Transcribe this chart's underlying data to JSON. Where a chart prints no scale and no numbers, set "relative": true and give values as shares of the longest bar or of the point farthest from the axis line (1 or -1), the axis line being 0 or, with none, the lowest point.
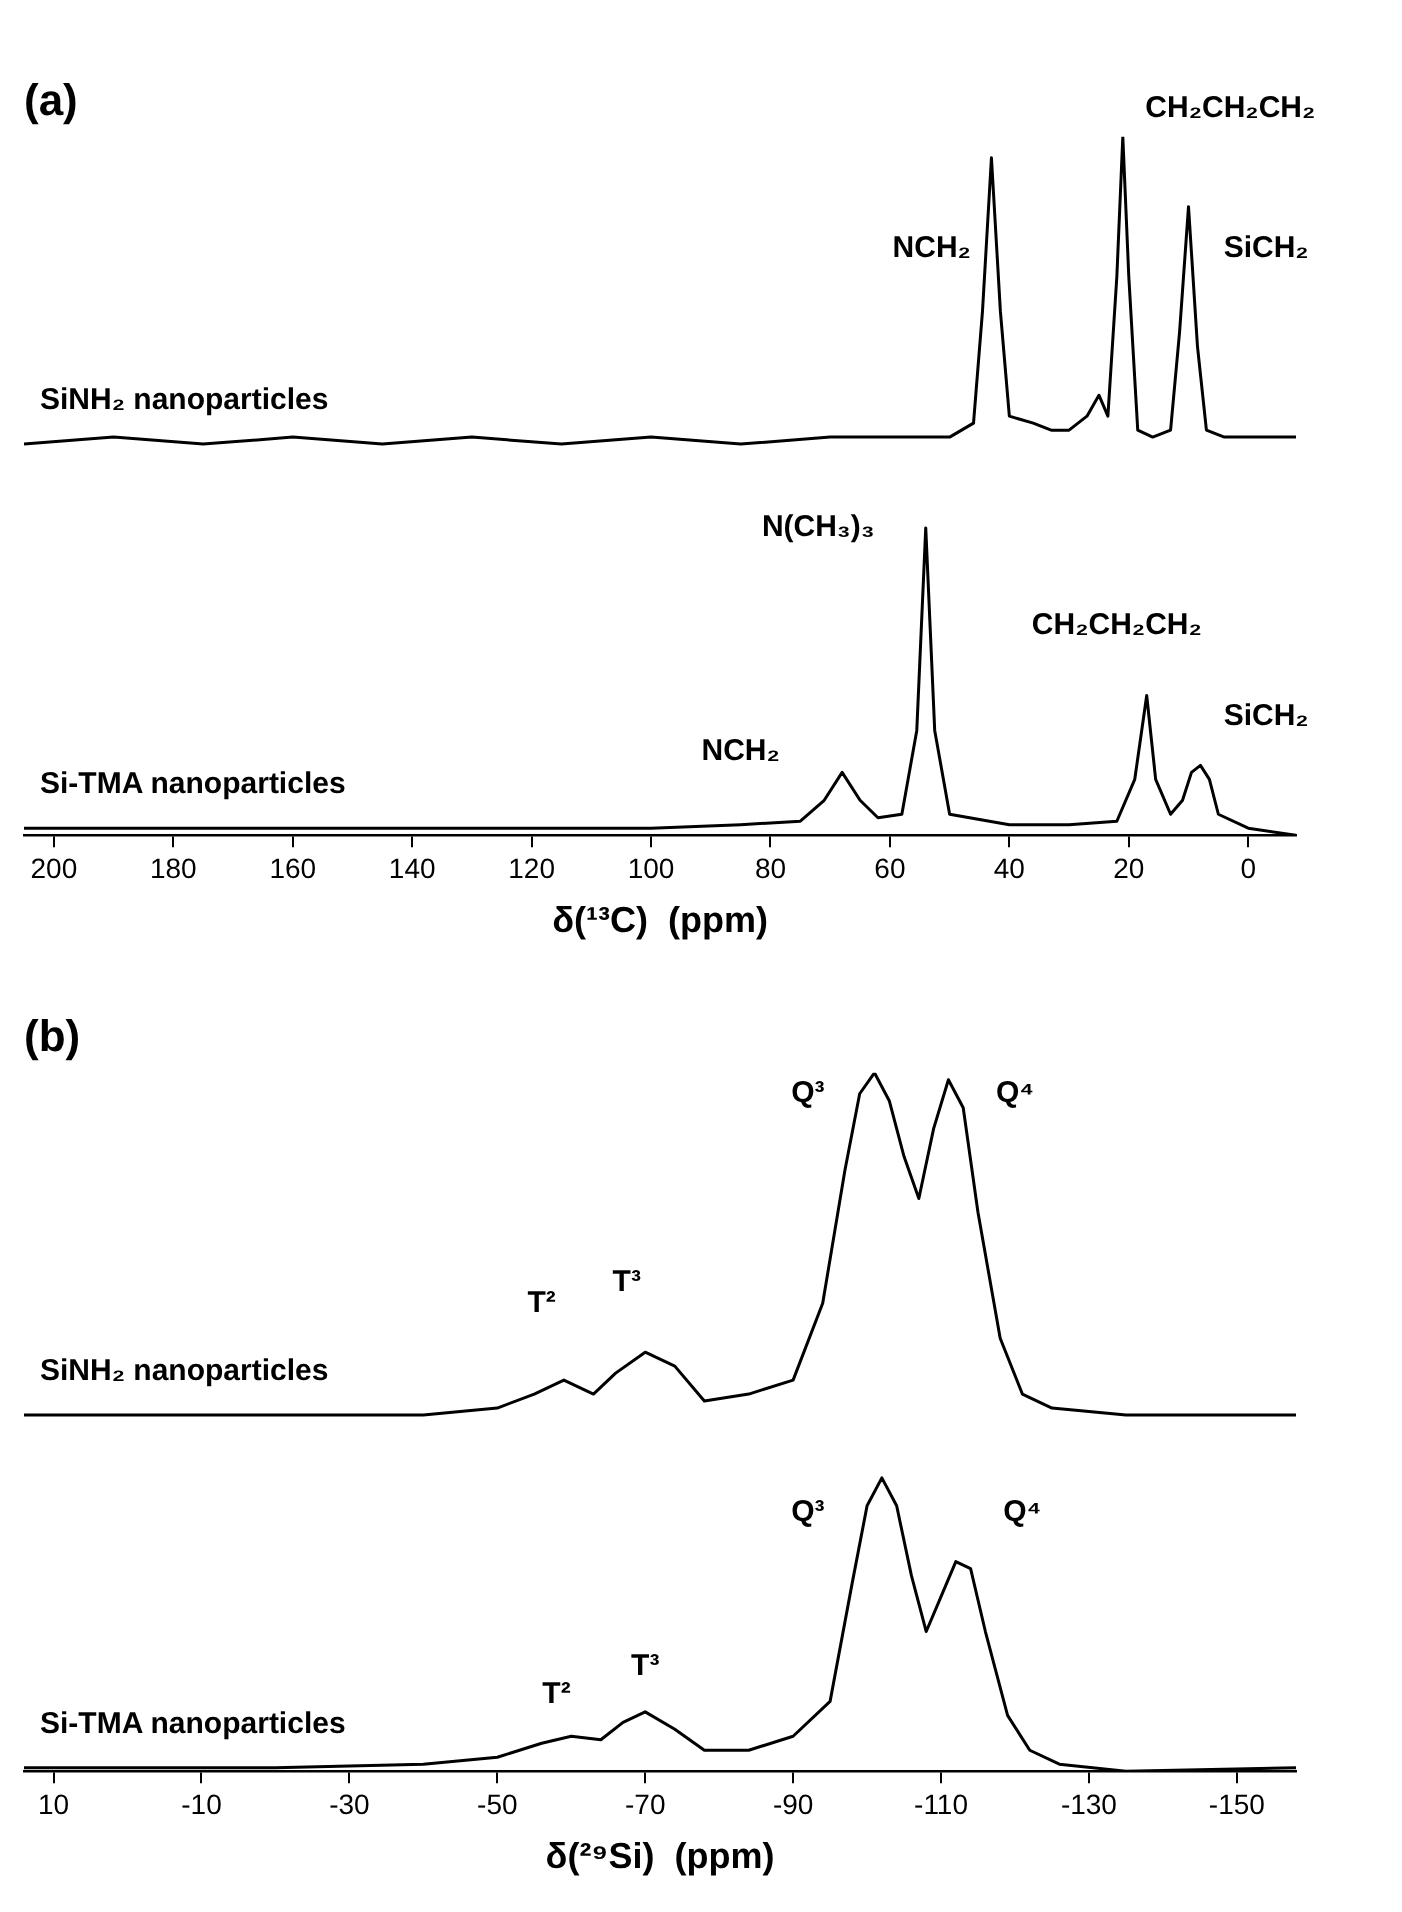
{
  "chart_data": [
    {
      "type": "line",
      "title": "(a)",
      "xlabel": "δ(¹³C)  (ppm)",
      "relative": true,
      "marker": "none",
      "legend": false,
      "xlim": [
        205,
        -8
      ],
      "xticks": [
        200,
        180,
        160,
        140,
        120,
        100,
        80,
        60,
        40,
        20,
        0
      ],
      "series": [
        {
          "name": "SiNH₂ nanoparticles",
          "color": "#000000",
          "x": [
            205,
            190,
            175,
            160,
            145,
            130,
            115,
            100,
            85,
            70,
            60,
            50,
            46,
            44.5,
            43,
            41.5,
            40,
            36,
            33,
            30,
            27,
            25,
            23.5,
            22,
            21,
            20,
            18.5,
            16,
            13,
            11.5,
            10,
            8.5,
            7,
            4,
            0,
            -8
          ],
          "values": [
            0.56,
            0.57,
            0.56,
            0.57,
            0.56,
            0.57,
            0.56,
            0.57,
            0.56,
            0.57,
            0.57,
            0.57,
            0.59,
            0.75,
            0.97,
            0.75,
            0.6,
            0.59,
            0.58,
            0.58,
            0.6,
            0.63,
            0.6,
            0.8,
            1.0,
            0.8,
            0.58,
            0.57,
            0.58,
            0.72,
            0.9,
            0.7,
            0.58,
            0.57,
            0.57,
            0.57
          ]
        },
        {
          "name": "Si-TMA nanoparticles",
          "color": "#000000",
          "x": [
            205,
            180,
            150,
            120,
            100,
            85,
            75,
            71,
            68,
            65,
            62,
            58,
            55.5,
            54,
            52.5,
            50,
            40,
            30,
            22,
            19,
            17,
            15.5,
            13,
            11,
            9.5,
            8,
            6.5,
            5,
            0,
            -8
          ],
          "values": [
            0.01,
            0.01,
            0.01,
            0.01,
            0.01,
            0.015,
            0.02,
            0.05,
            0.09,
            0.05,
            0.025,
            0.03,
            0.15,
            0.44,
            0.15,
            0.03,
            0.015,
            0.015,
            0.02,
            0.08,
            0.2,
            0.08,
            0.03,
            0.05,
            0.09,
            0.1,
            0.08,
            0.03,
            0.01,
            0
          ]
        }
      ],
      "annotations": [
        "NCH₂",
        "CH₂CH₂CH₂",
        "SiCH₂",
        "N(CH₃)₃",
        "NCH₂",
        "CH₂CH₂CH₂",
        "SiCH₂"
      ]
    },
    {
      "type": "line",
      "title": "(b)",
      "xlabel": "δ(²⁹Si)  (ppm)",
      "relative": true,
      "marker": "none",
      "legend": false,
      "xlim": [
        14,
        -158
      ],
      "xticks": [
        10,
        -10,
        -30,
        -50,
        -70,
        -90,
        -110,
        -130,
        -150
      ],
      "series": [
        {
          "name": "SiNH₂ nanoparticles",
          "color": "#000000",
          "x": [
            14,
            0,
            -20,
            -40,
            -50,
            -55,
            -59,
            -63,
            -66,
            -70,
            -74,
            -78,
            -84,
            -90,
            -94,
            -97,
            -99,
            -101,
            -103,
            -105,
            -107,
            -109,
            -111,
            -113,
            -115,
            -118,
            -121,
            -125,
            -135,
            -158
          ],
          "values": [
            0.51,
            0.51,
            0.51,
            0.51,
            0.52,
            0.54,
            0.56,
            0.54,
            0.57,
            0.6,
            0.58,
            0.53,
            0.54,
            0.56,
            0.67,
            0.86,
            0.97,
            1.0,
            0.96,
            0.88,
            0.82,
            0.92,
            0.99,
            0.95,
            0.8,
            0.62,
            0.54,
            0.52,
            0.51,
            0.51
          ]
        },
        {
          "name": "Si-TMA nanoparticles",
          "color": "#000000",
          "x": [
            14,
            0,
            -20,
            -40,
            -50,
            -56,
            -60,
            -64,
            -67,
            -70,
            -74,
            -78,
            -84,
            -90,
            -95,
            -98,
            -100,
            -102,
            -104,
            -106,
            -108,
            -110,
            -112,
            -114,
            -116,
            -119,
            -122,
            -126,
            -135,
            -158
          ],
          "values": [
            0.005,
            0.005,
            0.005,
            0.01,
            0.02,
            0.04,
            0.05,
            0.045,
            0.07,
            0.085,
            0.06,
            0.03,
            0.03,
            0.05,
            0.1,
            0.27,
            0.38,
            0.42,
            0.38,
            0.28,
            0.2,
            0.25,
            0.3,
            0.29,
            0.2,
            0.08,
            0.03,
            0.01,
            0,
            0.005
          ]
        }
      ],
      "annotations": [
        "T²",
        "T³",
        "Q³",
        "Q⁴",
        "T²",
        "T³",
        "Q³",
        "Q⁴"
      ]
    }
  ]
}
